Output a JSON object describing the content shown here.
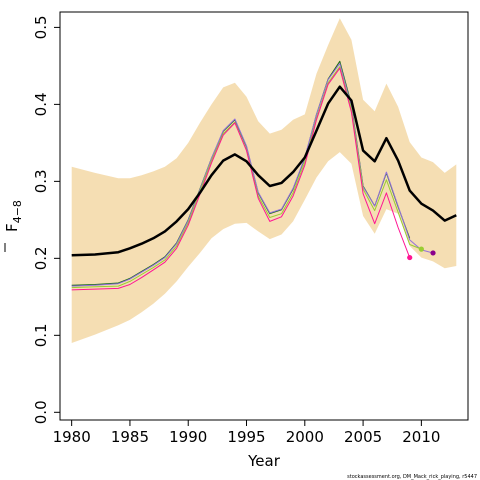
{
  "chart_data": {
    "type": "line",
    "xlabel": "Year",
    "ylabel": "F",
    "ylabel_subscript": "4−8",
    "xlim": [
      1979,
      2014
    ],
    "ylim": [
      -0.01,
      0.52
    ],
    "xticks": [
      1980,
      1985,
      1990,
      1995,
      2000,
      2005,
      2010
    ],
    "yticks": [
      0.0,
      0.1,
      0.2,
      0.3,
      0.4,
      0.5
    ],
    "ytick_labels": [
      "0.0",
      "0.1",
      "0.2",
      "0.3",
      "0.4",
      "0.5"
    ],
    "band_color": "#f5deb3",
    "band": {
      "x": [
        1980,
        1982,
        1984,
        1985,
        1986,
        1987,
        1988,
        1989,
        1990,
        1991,
        1992,
        1993,
        1994,
        1995,
        1996,
        1997,
        1998,
        1999,
        2000,
        2001,
        2002,
        2003,
        2004,
        2005,
        2006,
        2007,
        2008,
        2009,
        2010,
        2011,
        2012,
        2013
      ],
      "upper": [
        0.319,
        0.311,
        0.304,
        0.304,
        0.308,
        0.313,
        0.319,
        0.33,
        0.35,
        0.376,
        0.4,
        0.422,
        0.428,
        0.41,
        0.378,
        0.362,
        0.367,
        0.38,
        0.387,
        0.44,
        0.477,
        0.512,
        0.484,
        0.406,
        0.391,
        0.427,
        0.397,
        0.351,
        0.331,
        0.325,
        0.311,
        0.322
      ],
      "lower": [
        0.09,
        0.101,
        0.113,
        0.12,
        0.13,
        0.141,
        0.154,
        0.17,
        0.189,
        0.207,
        0.226,
        0.238,
        0.245,
        0.246,
        0.235,
        0.225,
        0.231,
        0.248,
        0.276,
        0.305,
        0.326,
        0.338,
        0.323,
        0.255,
        0.232,
        0.264,
        0.258,
        0.216,
        0.201,
        0.196,
        0.187,
        0.19
      ]
    },
    "series": [
      {
        "color": "#000000",
        "width": 2.5,
        "x": [
          1980,
          1982,
          1984,
          1985,
          1986,
          1987,
          1988,
          1989,
          1990,
          1991,
          1992,
          1993,
          1994,
          1995,
          1996,
          1997,
          1998,
          1999,
          2000,
          2001,
          2002,
          2003,
          2004,
          2005,
          2006,
          2007,
          2008,
          2009,
          2010,
          2011,
          2012,
          2013
        ],
        "values": [
          0.204,
          0.205,
          0.208,
          0.213,
          0.219,
          0.226,
          0.235,
          0.248,
          0.264,
          0.285,
          0.308,
          0.327,
          0.335,
          0.326,
          0.308,
          0.294,
          0.298,
          0.312,
          0.331,
          0.366,
          0.401,
          0.423,
          0.405,
          0.34,
          0.326,
          0.356,
          0.327,
          0.288,
          0.271,
          0.262,
          0.249,
          0.256
        ]
      },
      {
        "color": "#1a6b1a",
        "width": 1,
        "x": [
          1980,
          1982,
          1984,
          1985,
          1986,
          1987,
          1988,
          1989,
          1990,
          1991,
          1992,
          1993,
          1994,
          1995,
          1996,
          1997,
          1998,
          1999,
          2000,
          2001,
          2002,
          2003,
          2004,
          2005,
          2006,
          2007,
          2008,
          2009
        ],
        "values": [
          0.165,
          0.166,
          0.168,
          0.174,
          0.183,
          0.192,
          0.202,
          0.22,
          0.25,
          0.29,
          0.33,
          0.365,
          0.38,
          0.345,
          0.285,
          0.258,
          0.263,
          0.29,
          0.33,
          0.387,
          0.433,
          0.456,
          0.4,
          0.294,
          0.268,
          0.311,
          0.267,
          0.226
        ]
      },
      {
        "color": "#9370db",
        "width": 1,
        "x": [
          1980,
          1982,
          1984,
          1985,
          1986,
          1987,
          1988,
          1989,
          1990,
          1991,
          1992,
          1993,
          1994,
          1995,
          1996,
          1997,
          1998,
          1999,
          2000,
          2001,
          2002,
          2003,
          2004,
          2005,
          2006,
          2007,
          2008,
          2009,
          2010,
          2011
        ],
        "values": [
          0.164,
          0.165,
          0.167,
          0.173,
          0.182,
          0.191,
          0.201,
          0.219,
          0.249,
          0.289,
          0.33,
          0.366,
          0.381,
          0.346,
          0.286,
          0.259,
          0.264,
          0.291,
          0.331,
          0.387,
          0.432,
          0.453,
          0.398,
          0.293,
          0.268,
          0.312,
          0.268,
          0.224,
          0.211,
          0.207
        ]
      },
      {
        "color": "#9acd32",
        "width": 1,
        "x": [
          1980,
          1982,
          1984,
          1985,
          1986,
          1987,
          1988,
          1989,
          1990,
          1991,
          1992,
          1993,
          1994,
          1995,
          1996,
          1997,
          1998,
          1999,
          2000,
          2001,
          2002,
          2003,
          2004,
          2005,
          2006,
          2007,
          2008,
          2009,
          2010
        ],
        "values": [
          0.162,
          0.163,
          0.164,
          0.17,
          0.179,
          0.188,
          0.198,
          0.216,
          0.246,
          0.287,
          0.327,
          0.362,
          0.377,
          0.341,
          0.281,
          0.253,
          0.258,
          0.285,
          0.325,
          0.382,
          0.428,
          0.449,
          0.394,
          0.29,
          0.262,
          0.302,
          0.26,
          0.218,
          0.212
        ]
      },
      {
        "color": "#ff1493",
        "width": 1,
        "x": [
          1980,
          1982,
          1984,
          1985,
          1986,
          1987,
          1988,
          1989,
          1990,
          1991,
          1992,
          1993,
          1994,
          1995,
          1996,
          1997,
          1998,
          1999,
          2000,
          2001,
          2002,
          2003,
          2004,
          2005,
          2006,
          2007,
          2008,
          2009
        ],
        "values": [
          0.159,
          0.16,
          0.161,
          0.166,
          0.175,
          0.185,
          0.195,
          0.213,
          0.243,
          0.283,
          0.324,
          0.36,
          0.376,
          0.34,
          0.278,
          0.248,
          0.254,
          0.281,
          0.321,
          0.38,
          0.426,
          0.447,
          0.39,
          0.284,
          0.245,
          0.285,
          0.24,
          0.201
        ]
      }
    ],
    "end_points": [
      {
        "x": 2009,
        "y": 0.201,
        "color": "#ff1493"
      },
      {
        "x": 2010,
        "y": 0.212,
        "color": "#9acd32"
      },
      {
        "x": 2011,
        "y": 0.207,
        "color": "#8b008b"
      }
    ],
    "footer": "stockassessment.org, DM_Mack_rick_playing, r5447"
  }
}
